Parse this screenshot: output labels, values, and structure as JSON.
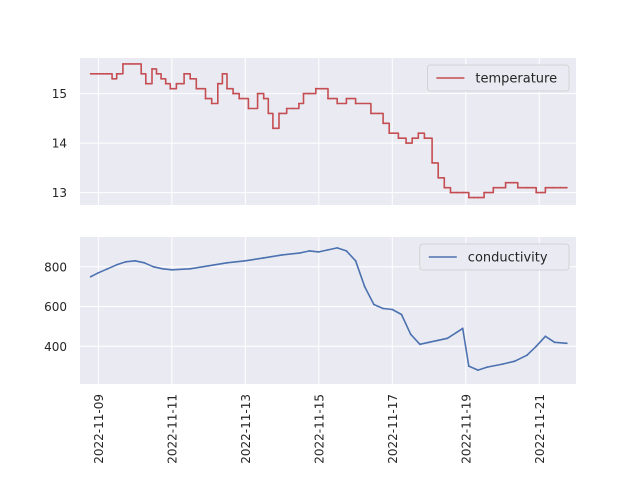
{
  "chart_data": [
    {
      "type": "line",
      "title": "",
      "xlabel": "",
      "ylabel": "",
      "ylim": [
        12.75,
        15.72
      ],
      "yticks": [
        13,
        14,
        15
      ],
      "grid": true,
      "legend_position": "top-right",
      "series": [
        {
          "name": "temperature",
          "color": "#c44e52",
          "style": "step",
          "x": [
            "2022-11-08T19:00",
            "2022-11-09T06:00",
            "2022-11-09T09:00",
            "2022-11-09T12:00",
            "2022-11-09T16:00",
            "2022-11-09T21:00",
            "2022-11-10T04:00",
            "2022-11-10T07:00",
            "2022-11-10T11:00",
            "2022-11-10T14:00",
            "2022-11-10T17:00",
            "2022-11-10T20:00",
            "2022-11-10T23:00",
            "2022-11-11T03:00",
            "2022-11-11T08:00",
            "2022-11-11T12:00",
            "2022-11-11T16:00",
            "2022-11-11T22:00",
            "2022-11-12T02:00",
            "2022-11-12T06:00",
            "2022-11-12T09:00",
            "2022-11-12T12:00",
            "2022-11-12T16:00",
            "2022-11-12T20:00",
            "2022-11-13T02:00",
            "2022-11-13T08:00",
            "2022-11-13T12:00",
            "2022-11-13T15:00",
            "2022-11-13T18:00",
            "2022-11-13T22:00",
            "2022-11-14T03:00",
            "2022-11-14T07:00",
            "2022-11-14T11:00",
            "2022-11-14T14:00",
            "2022-11-14T18:00",
            "2022-11-14T22:00",
            "2022-11-15T06:00",
            "2022-11-15T12:00",
            "2022-11-15T18:00",
            "2022-11-16T00:00",
            "2022-11-16T10:00",
            "2022-11-16T18:00",
            "2022-11-16T22:00",
            "2022-11-17T04:00",
            "2022-11-17T09:00",
            "2022-11-17T13:00",
            "2022-11-17T17:00",
            "2022-11-17T21:00",
            "2022-11-18T02:00",
            "2022-11-18T06:00",
            "2022-11-18T10:00",
            "2022-11-18T14:00",
            "2022-11-18T18:00",
            "2022-11-18T22:00",
            "2022-11-19T02:00",
            "2022-11-19T05:00",
            "2022-11-19T08:00",
            "2022-11-19T12:00",
            "2022-11-19T18:00",
            "2022-11-20T02:00",
            "2022-11-20T10:00",
            "2022-11-20T16:00",
            "2022-11-20T22:00",
            "2022-11-21T04:00",
            "2022-11-21T09:00",
            "2022-11-21T14:00",
            "2022-11-21T18:00"
          ],
          "y": [
            15.4,
            15.4,
            15.3,
            15.4,
            15.6,
            15.6,
            15.4,
            15.2,
            15.5,
            15.4,
            15.3,
            15.2,
            15.1,
            15.2,
            15.4,
            15.3,
            15.1,
            14.9,
            14.8,
            15.2,
            15.4,
            15.1,
            15.0,
            14.9,
            14.7,
            15.0,
            14.9,
            14.6,
            14.3,
            14.6,
            14.7,
            14.7,
            14.8,
            15.0,
            15.0,
            15.1,
            14.9,
            14.8,
            14.9,
            14.8,
            14.6,
            14.4,
            14.2,
            14.1,
            14.0,
            14.1,
            14.2,
            14.1,
            13.6,
            13.3,
            13.1,
            13.0,
            13.0,
            13.0,
            12.9,
            12.9,
            12.9,
            13.0,
            13.1,
            13.2,
            13.1,
            13.1,
            13.0,
            13.1,
            13.1,
            13.1,
            13.1
          ]
        }
      ]
    },
    {
      "type": "line",
      "title": "",
      "xlabel": "",
      "ylabel": "",
      "ylim": [
        210,
        950
      ],
      "yticks": [
        400,
        600,
        800
      ],
      "grid": true,
      "legend_position": "top-right",
      "xticks": [
        "2022-11-09",
        "2022-11-11",
        "2022-11-13",
        "2022-11-15",
        "2022-11-17",
        "2022-11-19",
        "2022-11-21"
      ],
      "series": [
        {
          "name": "conductivity",
          "color": "#4c72b0",
          "style": "line",
          "x": [
            "2022-11-08T19:00",
            "2022-11-09T00:00",
            "2022-11-09T06:00",
            "2022-11-09T12:00",
            "2022-11-09T18:00",
            "2022-11-10T00:00",
            "2022-11-10T06:00",
            "2022-11-10T12:00",
            "2022-11-10T18:00",
            "2022-11-11T00:00",
            "2022-11-11T12:00",
            "2022-11-12T00:00",
            "2022-11-12T12:00",
            "2022-11-13T00:00",
            "2022-11-13T12:00",
            "2022-11-14T00:00",
            "2022-11-14T12:00",
            "2022-11-14T18:00",
            "2022-11-15T00:00",
            "2022-11-15T06:00",
            "2022-11-15T12:00",
            "2022-11-15T18:00",
            "2022-11-16T00:00",
            "2022-11-16T06:00",
            "2022-11-16T12:00",
            "2022-11-16T18:00",
            "2022-11-17T00:00",
            "2022-11-17T06:00",
            "2022-11-17T12:00",
            "2022-11-17T18:00",
            "2022-11-18T00:00",
            "2022-11-18T06:00",
            "2022-11-18T12:00",
            "2022-11-18T18:00",
            "2022-11-18T22:00",
            "2022-11-19T02:00",
            "2022-11-19T08:00",
            "2022-11-19T14:00",
            "2022-11-20T00:00",
            "2022-11-20T08:00",
            "2022-11-20T16:00",
            "2022-11-20T22:00",
            "2022-11-21T04:00",
            "2022-11-21T10:00",
            "2022-11-21T18:00"
          ],
          "y": [
            750,
            770,
            790,
            810,
            825,
            830,
            820,
            800,
            790,
            785,
            790,
            805,
            820,
            830,
            845,
            860,
            870,
            880,
            875,
            885,
            895,
            880,
            830,
            700,
            610,
            590,
            585,
            560,
            460,
            410,
            420,
            430,
            440,
            470,
            490,
            300,
            280,
            295,
            310,
            325,
            355,
            400,
            450,
            420,
            415
          ]
        }
      ]
    }
  ]
}
